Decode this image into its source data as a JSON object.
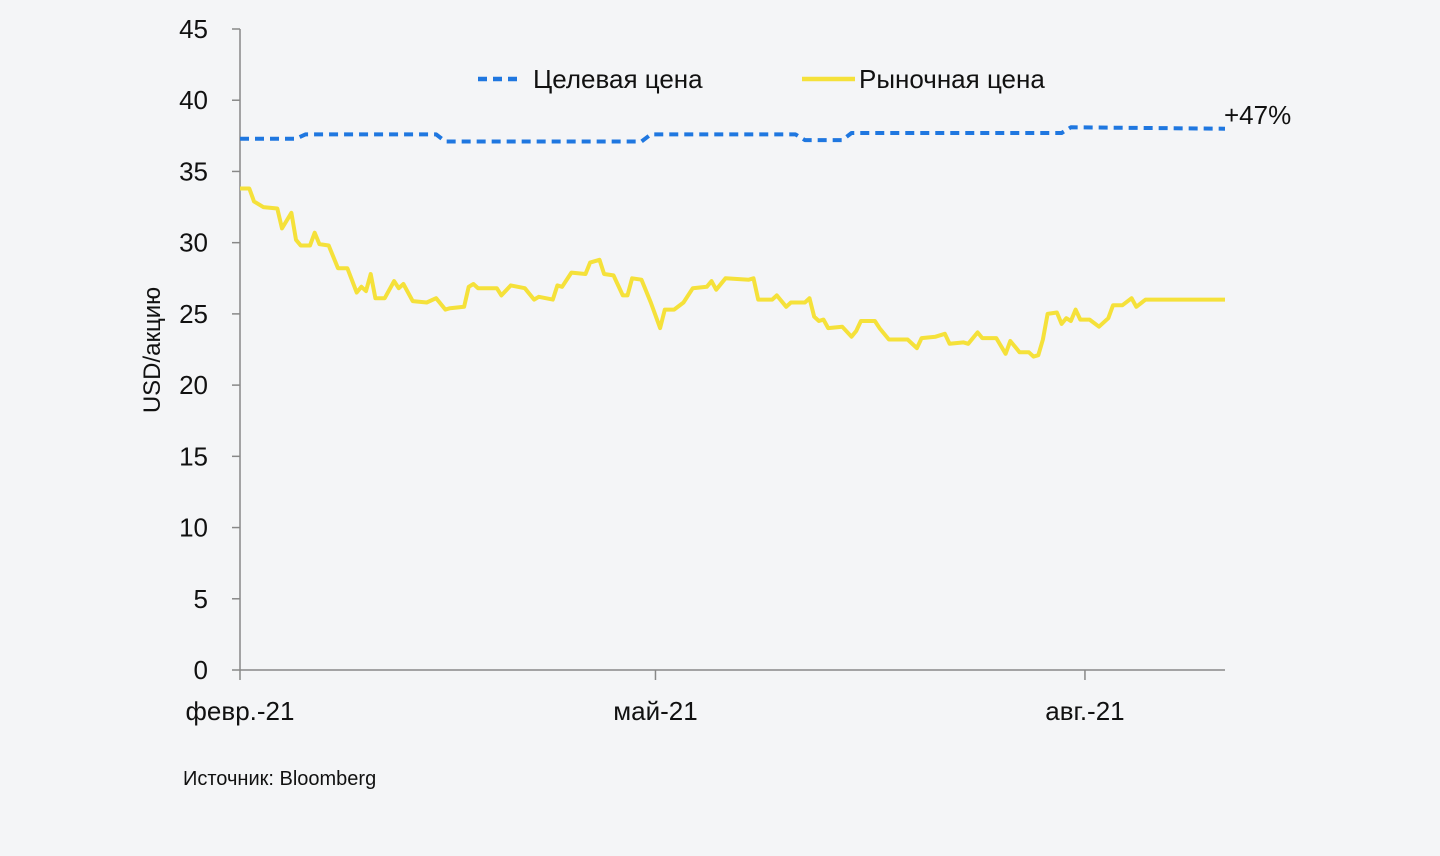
{
  "chart_data": {
    "type": "line",
    "title": "",
    "xlabel": "",
    "ylabel": "USD/акцию",
    "ylim": [
      0,
      45
    ],
    "yticks": [
      "0",
      "5",
      "10",
      "15",
      "20",
      "25",
      "30",
      "35",
      "40",
      "45"
    ],
    "xticks": [
      "февр.-21",
      "май-21",
      "авг.-21"
    ],
    "xlim": [
      "2021-02-01",
      "2021-08-31"
    ],
    "grid": false,
    "legend_position": "top",
    "annotations": [
      {
        "text": "+47%"
      }
    ],
    "series": [
      {
        "name": "Целевая цена",
        "color": "#1f77e0",
        "style": "dashed",
        "points": [
          [
            "2021-02-01",
            37.3
          ],
          [
            "2021-02-13",
            37.3
          ],
          [
            "2021-02-15",
            37.6
          ],
          [
            "2021-03-15",
            37.6
          ],
          [
            "2021-03-17",
            37.1
          ],
          [
            "2021-04-28",
            37.1
          ],
          [
            "2021-04-30",
            37.6
          ],
          [
            "2021-05-31",
            37.6
          ],
          [
            "2021-06-02",
            37.2
          ],
          [
            "2021-06-10",
            37.2
          ],
          [
            "2021-06-12",
            37.7
          ],
          [
            "2021-07-27",
            37.7
          ],
          [
            "2021-07-29",
            38.1
          ],
          [
            "2021-08-31",
            38.0
          ]
        ]
      },
      {
        "name": "Рыночная цена",
        "color": "#f5e13a",
        "style": "solid",
        "points": [
          [
            "2021-02-01",
            33.8
          ],
          [
            "2021-02-03",
            33.8
          ],
          [
            "2021-02-04",
            32.9
          ],
          [
            "2021-02-06",
            32.5
          ],
          [
            "2021-02-09",
            32.4
          ],
          [
            "2021-02-10",
            31.0
          ],
          [
            "2021-02-12",
            32.1
          ],
          [
            "2021-02-13",
            30.2
          ],
          [
            "2021-02-14",
            29.8
          ],
          [
            "2021-02-16",
            29.8
          ],
          [
            "2021-02-17",
            30.7
          ],
          [
            "2021-02-18",
            29.9
          ],
          [
            "2021-02-20",
            29.8
          ],
          [
            "2021-02-22",
            28.2
          ],
          [
            "2021-02-24",
            28.2
          ],
          [
            "2021-02-26",
            26.5
          ],
          [
            "2021-02-27",
            26.9
          ],
          [
            "2021-02-28",
            26.6
          ],
          [
            "2021-03-01",
            27.8
          ],
          [
            "2021-03-02",
            26.1
          ],
          [
            "2021-03-04",
            26.1
          ],
          [
            "2021-03-06",
            27.3
          ],
          [
            "2021-03-07",
            26.8
          ],
          [
            "2021-03-08",
            27.1
          ],
          [
            "2021-03-10",
            25.9
          ],
          [
            "2021-03-13",
            25.8
          ],
          [
            "2021-03-15",
            26.1
          ],
          [
            "2021-03-17",
            25.3
          ],
          [
            "2021-03-18",
            25.4
          ],
          [
            "2021-03-21",
            25.5
          ],
          [
            "2021-03-22",
            26.9
          ],
          [
            "2021-03-23",
            27.1
          ],
          [
            "2021-03-24",
            26.8
          ],
          [
            "2021-03-28",
            26.8
          ],
          [
            "2021-03-29",
            26.3
          ],
          [
            "2021-03-31",
            27.0
          ],
          [
            "2021-04-03",
            26.8
          ],
          [
            "2021-04-05",
            26.0
          ],
          [
            "2021-04-06",
            26.2
          ],
          [
            "2021-04-09",
            26.0
          ],
          [
            "2021-04-10",
            27.0
          ],
          [
            "2021-04-11",
            26.9
          ],
          [
            "2021-04-13",
            27.9
          ],
          [
            "2021-04-16",
            27.8
          ],
          [
            "2021-04-17",
            28.6
          ],
          [
            "2021-04-19",
            28.8
          ],
          [
            "2021-04-20",
            27.8
          ],
          [
            "2021-04-22",
            27.7
          ],
          [
            "2021-04-24",
            26.3
          ],
          [
            "2021-04-25",
            26.3
          ],
          [
            "2021-04-26",
            27.5
          ],
          [
            "2021-04-28",
            27.4
          ],
          [
            "2021-04-30",
            25.8
          ],
          [
            "2021-05-02",
            24.0
          ],
          [
            "2021-05-03",
            25.3
          ],
          [
            "2021-05-05",
            25.3
          ],
          [
            "2021-05-07",
            25.8
          ],
          [
            "2021-05-09",
            26.8
          ],
          [
            "2021-05-12",
            26.9
          ],
          [
            "2021-05-13",
            27.3
          ],
          [
            "2021-05-14",
            26.7
          ],
          [
            "2021-05-16",
            27.5
          ],
          [
            "2021-05-21",
            27.4
          ],
          [
            "2021-05-22",
            27.5
          ],
          [
            "2021-05-23",
            26.0
          ],
          [
            "2021-05-26",
            26.0
          ],
          [
            "2021-05-27",
            26.3
          ],
          [
            "2021-05-29",
            25.5
          ],
          [
            "2021-05-30",
            25.8
          ],
          [
            "2021-06-02",
            25.8
          ],
          [
            "2021-06-03",
            26.1
          ],
          [
            "2021-06-04",
            24.8
          ],
          [
            "2021-06-05",
            24.5
          ],
          [
            "2021-06-06",
            24.6
          ],
          [
            "2021-06-07",
            24.0
          ],
          [
            "2021-06-10",
            24.1
          ],
          [
            "2021-06-12",
            23.4
          ],
          [
            "2021-06-13",
            23.8
          ],
          [
            "2021-06-14",
            24.5
          ],
          [
            "2021-06-17",
            24.5
          ],
          [
            "2021-06-18",
            24.0
          ],
          [
            "2021-06-20",
            23.2
          ],
          [
            "2021-06-24",
            23.2
          ],
          [
            "2021-06-26",
            22.6
          ],
          [
            "2021-06-27",
            23.3
          ],
          [
            "2021-06-30",
            23.4
          ],
          [
            "2021-07-02",
            23.6
          ],
          [
            "2021-07-03",
            22.9
          ],
          [
            "2021-07-06",
            23.0
          ],
          [
            "2021-07-07",
            22.9
          ],
          [
            "2021-07-09",
            23.7
          ],
          [
            "2021-07-10",
            23.3
          ],
          [
            "2021-07-13",
            23.3
          ],
          [
            "2021-07-15",
            22.2
          ],
          [
            "2021-07-16",
            23.1
          ],
          [
            "2021-07-18",
            22.3
          ],
          [
            "2021-07-20",
            22.3
          ],
          [
            "2021-07-21",
            22.0
          ],
          [
            "2021-07-22",
            22.1
          ],
          [
            "2021-07-23",
            23.2
          ],
          [
            "2021-07-24",
            25.0
          ],
          [
            "2021-07-26",
            25.1
          ],
          [
            "2021-07-27",
            24.3
          ],
          [
            "2021-07-28",
            24.7
          ],
          [
            "2021-07-29",
            24.5
          ],
          [
            "2021-07-30",
            25.3
          ],
          [
            "2021-07-31",
            24.6
          ],
          [
            "2021-08-02",
            24.6
          ],
          [
            "2021-08-04",
            24.1
          ],
          [
            "2021-08-06",
            24.7
          ],
          [
            "2021-08-07",
            25.6
          ],
          [
            "2021-08-09",
            25.6
          ],
          [
            "2021-08-11",
            26.1
          ],
          [
            "2021-08-12",
            25.5
          ],
          [
            "2021-08-14",
            26.0
          ],
          [
            "2021-08-17",
            26.0
          ],
          [
            "2021-08-19",
            26.0
          ],
          [
            "2021-08-31",
            26.0
          ]
        ]
      }
    ],
    "source": "Источник: Bloomberg"
  }
}
